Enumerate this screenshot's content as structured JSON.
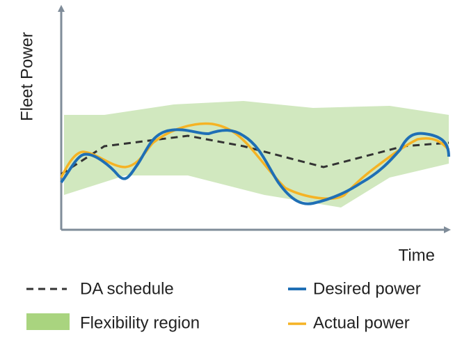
{
  "axes": {
    "y_label": "Fleet Power",
    "x_label": "Time"
  },
  "legend": {
    "da_schedule": "DA schedule",
    "desired_power": "Desired power",
    "flexibility_region": "Flexibility region",
    "actual_power": "Actual power"
  }
}
